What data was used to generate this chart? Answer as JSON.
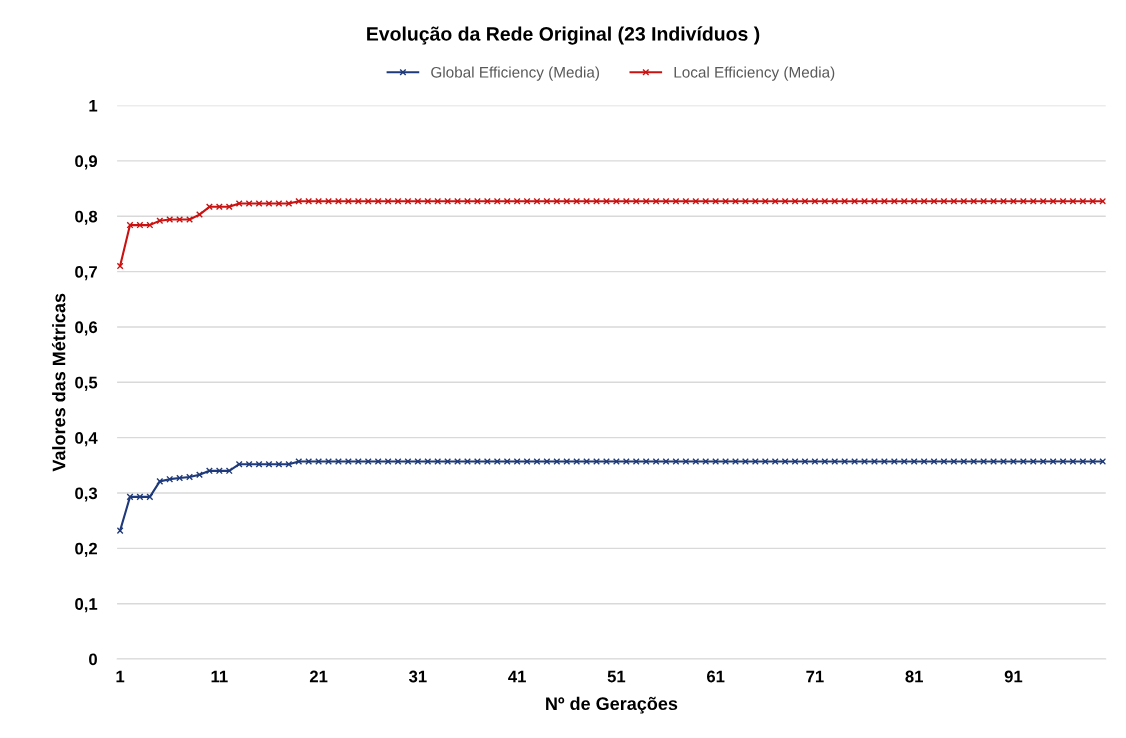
{
  "chart_data": {
    "type": "line",
    "title": "Evolução da Rede Original (23 Indivíduos )",
    "xlabel": "Nº de Gerações",
    "ylabel": "Valores das Métricas",
    "categories": [
      "1",
      null,
      null,
      null,
      null,
      null,
      null,
      null,
      null,
      null,
      "11",
      null,
      null,
      null,
      null,
      null,
      null,
      null,
      null,
      null,
      "21",
      null,
      null,
      null,
      null,
      null,
      null,
      null,
      null,
      null,
      "31",
      null,
      null,
      null,
      null,
      null,
      null,
      null,
      null,
      null,
      "41",
      null,
      null,
      null,
      null,
      null,
      null,
      null,
      null,
      null,
      "51",
      null,
      null,
      null,
      null,
      null,
      null,
      null,
      null,
      null,
      "61",
      null,
      null,
      null,
      null,
      null,
      null,
      null,
      null,
      null,
      "71",
      null,
      null,
      null,
      null,
      null,
      null,
      null,
      null,
      null,
      "81",
      null,
      null,
      null,
      null,
      null,
      null,
      null,
      null,
      null,
      "91",
      null,
      null,
      null,
      null,
      null,
      null,
      null,
      null,
      null
    ],
    "series": [
      {
        "name": "Global Efficiency (Media)",
        "color": "#1f3a7a",
        "values": [
          0.232,
          0.293,
          0.293,
          0.293,
          0.321,
          0.325,
          0.327,
          0.329,
          0.333,
          0.34,
          0.34,
          0.34,
          0.352,
          0.352,
          0.352,
          0.352,
          0.352,
          0.352,
          0.357,
          0.357,
          0.357,
          0.357,
          0.357,
          0.357,
          0.357,
          0.357,
          0.357,
          0.357,
          0.357,
          0.357,
          0.357,
          0.357,
          0.357,
          0.357,
          0.357,
          0.357,
          0.357,
          0.357,
          0.357,
          0.357,
          0.357,
          0.357,
          0.357,
          0.357,
          0.357,
          0.357,
          0.357,
          0.357,
          0.357,
          0.357,
          0.357,
          0.357,
          0.357,
          0.357,
          0.357,
          0.357,
          0.357,
          0.357,
          0.357,
          0.357,
          0.357,
          0.357,
          0.357,
          0.357,
          0.357,
          0.357,
          0.357,
          0.357,
          0.357,
          0.357,
          0.357,
          0.357,
          0.357,
          0.357,
          0.357,
          0.357,
          0.357,
          0.357,
          0.357,
          0.357,
          0.357,
          0.357,
          0.357,
          0.357,
          0.357,
          0.357,
          0.357,
          0.357,
          0.357,
          0.357,
          0.357,
          0.357,
          0.357,
          0.357,
          0.357,
          0.357,
          0.357,
          0.357,
          0.357,
          0.357
        ]
      },
      {
        "name": "Local Efficiency (Media)",
        "color": "#cc1111",
        "values": [
          0.71,
          0.784,
          0.784,
          0.784,
          0.792,
          0.794,
          0.794,
          0.794,
          0.803,
          0.817,
          0.817,
          0.817,
          0.823,
          0.823,
          0.823,
          0.823,
          0.823,
          0.823,
          0.827,
          0.827,
          0.827,
          0.827,
          0.827,
          0.827,
          0.827,
          0.827,
          0.827,
          0.827,
          0.827,
          0.827,
          0.827,
          0.827,
          0.827,
          0.827,
          0.827,
          0.827,
          0.827,
          0.827,
          0.827,
          0.827,
          0.827,
          0.827,
          0.827,
          0.827,
          0.827,
          0.827,
          0.827,
          0.827,
          0.827,
          0.827,
          0.827,
          0.827,
          0.827,
          0.827,
          0.827,
          0.827,
          0.827,
          0.827,
          0.827,
          0.827,
          0.827,
          0.827,
          0.827,
          0.827,
          0.827,
          0.827,
          0.827,
          0.827,
          0.827,
          0.827,
          0.827,
          0.827,
          0.827,
          0.827,
          0.827,
          0.827,
          0.827,
          0.827,
          0.827,
          0.827,
          0.827,
          0.827,
          0.827,
          0.827,
          0.827,
          0.827,
          0.827,
          0.827,
          0.827,
          0.827,
          0.827,
          0.827,
          0.827,
          0.827,
          0.827,
          0.827,
          0.827,
          0.827,
          0.827,
          0.827
        ]
      }
    ],
    "ylim": [
      0,
      1
    ],
    "yticks": [
      {
        "value": 0,
        "label": "0"
      },
      {
        "value": 0.1,
        "label": "0,1"
      },
      {
        "value": 0.2,
        "label": "0,2"
      },
      {
        "value": 0.3,
        "label": "0,3"
      },
      {
        "value": 0.4,
        "label": "0,4"
      },
      {
        "value": 0.5,
        "label": "0,5"
      },
      {
        "value": 0.6,
        "label": "0,6"
      },
      {
        "value": 0.7,
        "label": "0,7"
      },
      {
        "value": 0.8,
        "label": "0,8"
      },
      {
        "value": 0.9,
        "label": "0,9"
      },
      {
        "value": 1,
        "label": "1"
      }
    ],
    "grid": "y",
    "legend": "top",
    "marker": "cross",
    "line_style": "solid"
  }
}
